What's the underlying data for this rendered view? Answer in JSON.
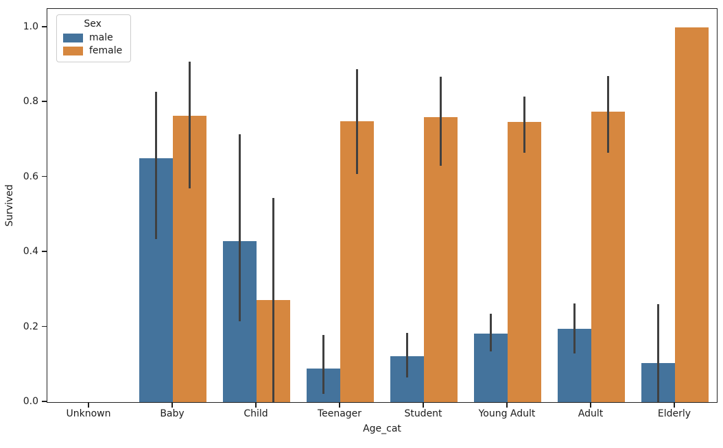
{
  "figure": {
    "ylabel": "Survived",
    "xlabel": "Age_cat",
    "yticks": [
      "0.0",
      "0.2",
      "0.4",
      "0.6",
      "0.8",
      "1.0"
    ],
    "legend": {
      "title": "Sex",
      "entries": [
        {
          "label": "male",
          "color": "#44739C"
        },
        {
          "label": "female",
          "color": "#D6873F"
        }
      ]
    }
  },
  "chart_data": {
    "type": "bar",
    "title": "",
    "xlabel": "Age_cat",
    "ylabel": "Survived",
    "ylim": [
      0,
      1.049
    ],
    "yticks": [
      0.0,
      0.2,
      0.4,
      0.6,
      0.8,
      1.0
    ],
    "grid": false,
    "legend_title": "Sex",
    "legend_position": "upper left",
    "error_bar_color": "#404040",
    "categories": [
      "Unknown",
      "Baby",
      "Child",
      "Teenager",
      "Student",
      "Young Adult",
      "Adult",
      "Elderly"
    ],
    "series": [
      {
        "name": "male",
        "color": "#44739C",
        "values": [
          0,
          0.65,
          0.43,
          0.089,
          0.122,
          0.183,
          0.195,
          0.105
        ],
        "ci": [
          null,
          [
            0.435,
            0.828
          ],
          [
            0.215,
            0.715
          ],
          [
            0.022,
            0.18
          ],
          [
            0.065,
            0.185
          ],
          [
            0.135,
            0.235
          ],
          [
            0.13,
            0.264
          ],
          [
            0.0,
            0.262
          ]
        ]
      },
      {
        "name": "female",
        "color": "#D6873F",
        "values": [
          0,
          0.764,
          0.272,
          0.75,
          0.76,
          0.748,
          0.775,
          1.0
        ],
        "ci": [
          null,
          [
            0.57,
            0.908
          ],
          [
            0.0,
            0.545
          ],
          [
            0.608,
            0.888
          ],
          [
            0.63,
            0.868
          ],
          [
            0.665,
            0.815
          ],
          [
            0.665,
            0.87
          ],
          null
        ]
      }
    ]
  }
}
